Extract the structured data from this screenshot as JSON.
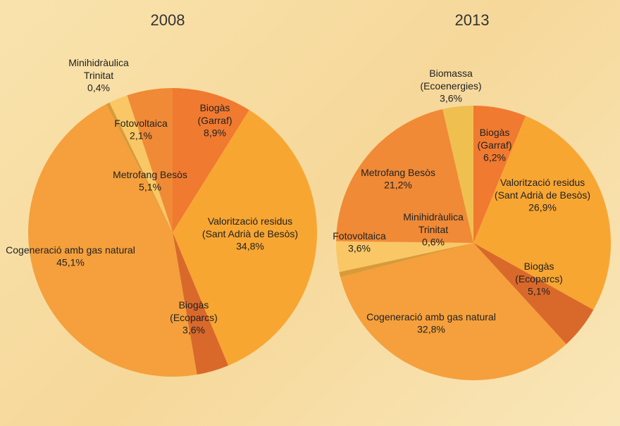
{
  "chart_data": [
    {
      "type": "pie",
      "title": "2008",
      "categories": [
        "Biogàs\n(Garraf)",
        "Valorització residus\n(Sant Adrià de Besòs)",
        "Biogàs\n(Ecoparcs)",
        "Cogeneració amb gas natural",
        "Minihidràulica\nTrinitat",
        "Fotovoltaica",
        "Metrofang Besòs"
      ],
      "values": [
        8.9,
        34.8,
        3.6,
        45.1,
        0.4,
        2.1,
        5.1
      ],
      "value_labels": [
        "8,9%",
        "34,8%",
        "3,6%",
        "45,1%",
        "0,4%",
        "2,1%",
        "5,1%"
      ],
      "colors": [
        "#f07a30",
        "#f8a632",
        "#d9692b",
        "#f5a03c",
        "#d89a3a",
        "#f9c765",
        "#f08a36"
      ]
    },
    {
      "type": "pie",
      "title": "2013",
      "categories": [
        "Biogàs\n(Garraf)",
        "Valorització residus\n(Sant Adrià de Besòs)",
        "Biogàs\n(Ecoparcs)",
        "Cogeneració amb gas natural",
        "Minihidràulica\nTrinitat",
        "Fotovoltaica",
        "Metrofang Besòs",
        "Biomassa\n(Ecoenergies)"
      ],
      "values": [
        6.2,
        26.9,
        5.1,
        32.8,
        0.6,
        3.6,
        21.2,
        3.6
      ],
      "value_labels": [
        "6,2%",
        "26,9%",
        "5,1%",
        "32,8%",
        "0,6%",
        "3,6%",
        "21,2%",
        "3,6%"
      ],
      "colors": [
        "#f07a30",
        "#f8a632",
        "#d9692b",
        "#f5a03c",
        "#d89a3a",
        "#f9c765",
        "#f08a36",
        "#efc050"
      ]
    }
  ]
}
